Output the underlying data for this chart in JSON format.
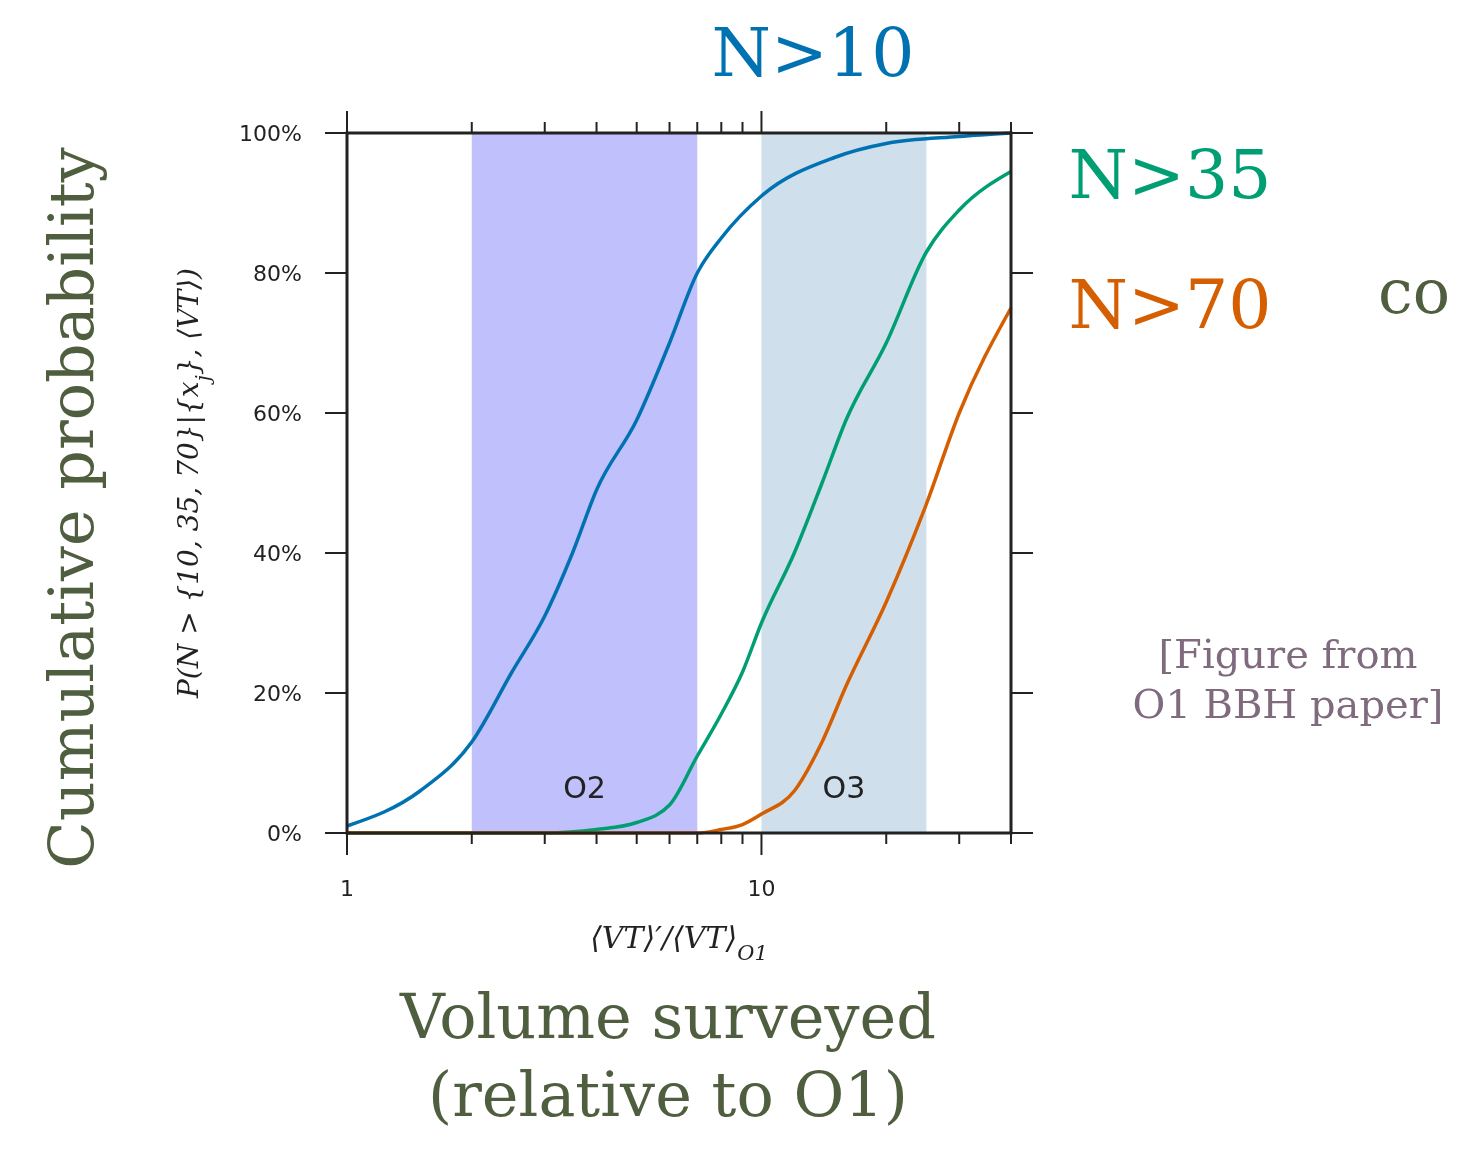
{
  "chart_data": {
    "type": "line",
    "xlabel": "⟨VT⟩′/⟨VT⟩$_{O1}$",
    "ylabel": "P(N > {10, 35, 70}|{x$_{j}$}, ⟨VT⟩)",
    "log": "x",
    "xlim": [
      1,
      40
    ],
    "ylim": [
      0,
      100
    ],
    "xticks": [
      1,
      {
        "value": 2,
        "label": null
      },
      {
        "value": 3,
        "label": null
      },
      {
        "value": 4,
        "label": null
      },
      {
        "value": 5,
        "label": null
      },
      {
        "value": 6,
        "label": null
      },
      {
        "value": 7,
        "label": null
      },
      {
        "value": 8,
        "label": null
      },
      {
        "value": 9,
        "label": null
      },
      10,
      {
        "value": 20,
        "label": null
      },
      {
        "value": 30,
        "label": null
      },
      {
        "value": 40,
        "label": null
      }
    ],
    "yticks": [
      {
        "value": 0,
        "label": "0%"
      },
      {
        "value": 20,
        "label": "20%"
      },
      {
        "value": 40,
        "label": "40%"
      },
      {
        "value": 60,
        "label": "60%"
      },
      {
        "value": 80,
        "label": "80%"
      },
      {
        "value": 100,
        "label": "100%"
      }
    ],
    "grid": false,
    "line_style": "solid",
    "series": [
      {
        "name": "N>10",
        "color": "#0072b2",
        "x": [
          1,
          1.5,
          2,
          2.5,
          3,
          3.5,
          4,
          5,
          6,
          7,
          8,
          10,
          15,
          20,
          30,
          40
        ],
        "values": [
          1,
          6,
          13,
          23,
          31,
          40,
          49,
          59,
          70,
          80,
          85,
          91,
          96.5,
          98.5,
          99.5,
          100
        ]
      },
      {
        "name": "N>35",
        "color": "#009e73",
        "x": [
          1,
          3,
          4,
          5,
          6,
          7,
          8,
          9,
          10,
          12,
          14,
          16,
          20,
          25,
          30,
          40
        ],
        "values": [
          0,
          0,
          0.5,
          1.5,
          4,
          11,
          17,
          23,
          30,
          40,
          50,
          59,
          70,
          83,
          89,
          94.5
        ]
      },
      {
        "name": "N>70",
        "color": "#d55e00",
        "x": [
          1,
          7,
          8,
          9,
          10,
          12,
          14,
          16,
          20,
          25,
          30,
          40
        ],
        "values": [
          0,
          0,
          0.5,
          1.2,
          2.7,
          6,
          13,
          21,
          33,
          47,
          60,
          75
        ]
      }
    ],
    "bands": [
      {
        "axis": "x",
        "from": 2,
        "to": 7,
        "label": "O2",
        "color": "#c0c0fc"
      },
      {
        "axis": "x",
        "from": 10,
        "to": 25,
        "label": "O3",
        "color": "#d0dfec"
      }
    ],
    "annotations": [
      "Cumulative probability",
      "Volume surveyed (relative to O1)",
      "[Figure from O1 BBH paper]",
      "co"
    ]
  }
}
